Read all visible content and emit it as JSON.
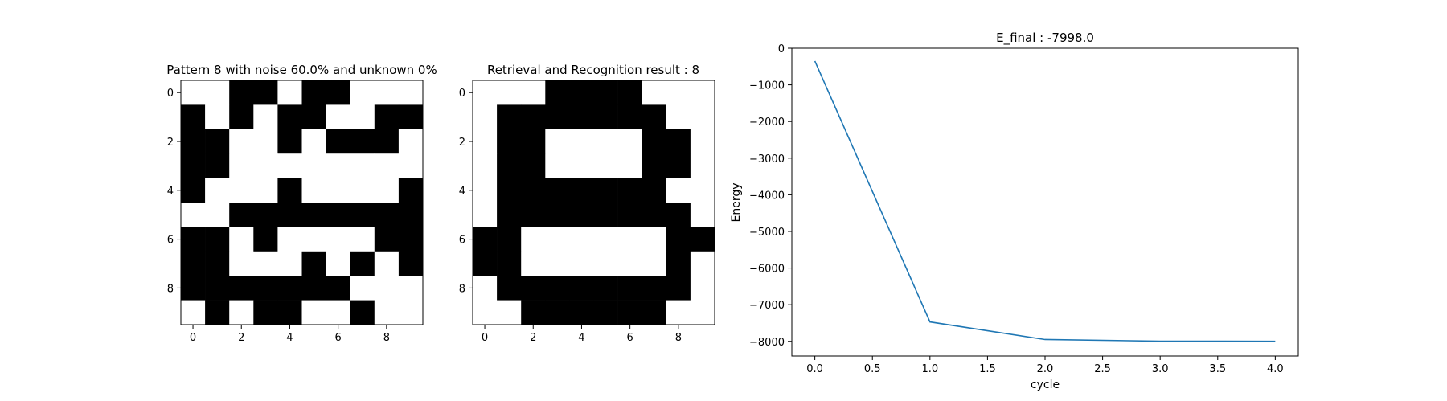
{
  "chart_data": [
    {
      "type": "heatmap",
      "title": "Pattern 8 with noise 60.0% and unknown 0%",
      "xticks": [
        "0",
        "2",
        "4",
        "6",
        "8"
      ],
      "yticks": [
        "0",
        "2",
        "4",
        "6",
        "8"
      ],
      "colors": {
        "on": "#000000",
        "off": "#ffffff"
      },
      "grid": [
        [
          0,
          0,
          1,
          1,
          0,
          1,
          1,
          0,
          0,
          0
        ],
        [
          1,
          0,
          1,
          0,
          1,
          1,
          0,
          0,
          1,
          1
        ],
        [
          1,
          1,
          0,
          0,
          1,
          0,
          1,
          1,
          1,
          0
        ],
        [
          1,
          1,
          0,
          0,
          0,
          0,
          0,
          0,
          0,
          0
        ],
        [
          1,
          0,
          0,
          0,
          1,
          0,
          0,
          0,
          0,
          1
        ],
        [
          0,
          0,
          1,
          1,
          1,
          1,
          1,
          1,
          1,
          1
        ],
        [
          1,
          1,
          0,
          1,
          0,
          0,
          0,
          0,
          1,
          1
        ],
        [
          1,
          1,
          0,
          0,
          0,
          1,
          0,
          1,
          0,
          1
        ],
        [
          1,
          1,
          1,
          1,
          1,
          1,
          1,
          0,
          0,
          0
        ],
        [
          0,
          1,
          0,
          1,
          1,
          0,
          0,
          1,
          0,
          0
        ]
      ]
    },
    {
      "type": "heatmap",
      "title": "Retrieval and Recognition result : 8",
      "xticks": [
        "0",
        "2",
        "4",
        "6",
        "8"
      ],
      "yticks": [
        "0",
        "2",
        "4",
        "6",
        "8"
      ],
      "colors": {
        "on": "#000000",
        "off": "#ffffff"
      },
      "grid": [
        [
          0,
          0,
          0,
          1,
          1,
          1,
          1,
          0,
          0,
          0
        ],
        [
          0,
          1,
          1,
          1,
          1,
          1,
          1,
          1,
          0,
          0
        ],
        [
          0,
          1,
          1,
          0,
          0,
          0,
          0,
          1,
          1,
          0
        ],
        [
          0,
          1,
          1,
          0,
          0,
          0,
          0,
          1,
          1,
          0
        ],
        [
          0,
          1,
          1,
          1,
          1,
          1,
          1,
          1,
          0,
          0
        ],
        [
          0,
          1,
          1,
          1,
          1,
          1,
          1,
          1,
          1,
          0
        ],
        [
          1,
          1,
          0,
          0,
          0,
          0,
          0,
          0,
          1,
          1
        ],
        [
          1,
          1,
          0,
          0,
          0,
          0,
          0,
          0,
          1,
          0
        ],
        [
          0,
          1,
          1,
          1,
          1,
          1,
          1,
          1,
          1,
          0
        ],
        [
          0,
          0,
          1,
          1,
          1,
          1,
          1,
          1,
          0,
          0
        ]
      ]
    },
    {
      "type": "line",
      "title": "E_final : -7998.0",
      "xlabel": "cycle",
      "ylabel": "Energy",
      "xlim": [
        -0.2,
        4.2
      ],
      "ylim": [
        -8400,
        0
      ],
      "xticks": [
        0.0,
        0.5,
        1.0,
        1.5,
        2.0,
        2.5,
        3.0,
        3.5,
        4.0
      ],
      "xtick_labels": [
        "0.0",
        "0.5",
        "1.0",
        "1.5",
        "2.0",
        "2.5",
        "3.0",
        "3.5",
        "4.0"
      ],
      "yticks": [
        0,
        -1000,
        -2000,
        -3000,
        -4000,
        -5000,
        -6000,
        -7000,
        -8000
      ],
      "ytick_labels": [
        "0",
        "−1000",
        "−2000",
        "−3000",
        "−4000",
        "−5000",
        "−6000",
        "−7000",
        "−8000"
      ],
      "grid": false,
      "color": "#1f77b4",
      "x": [
        0,
        1,
        2,
        3,
        4
      ],
      "y": [
        -350,
        -7470,
        -7950,
        -7995,
        -7998
      ]
    }
  ]
}
